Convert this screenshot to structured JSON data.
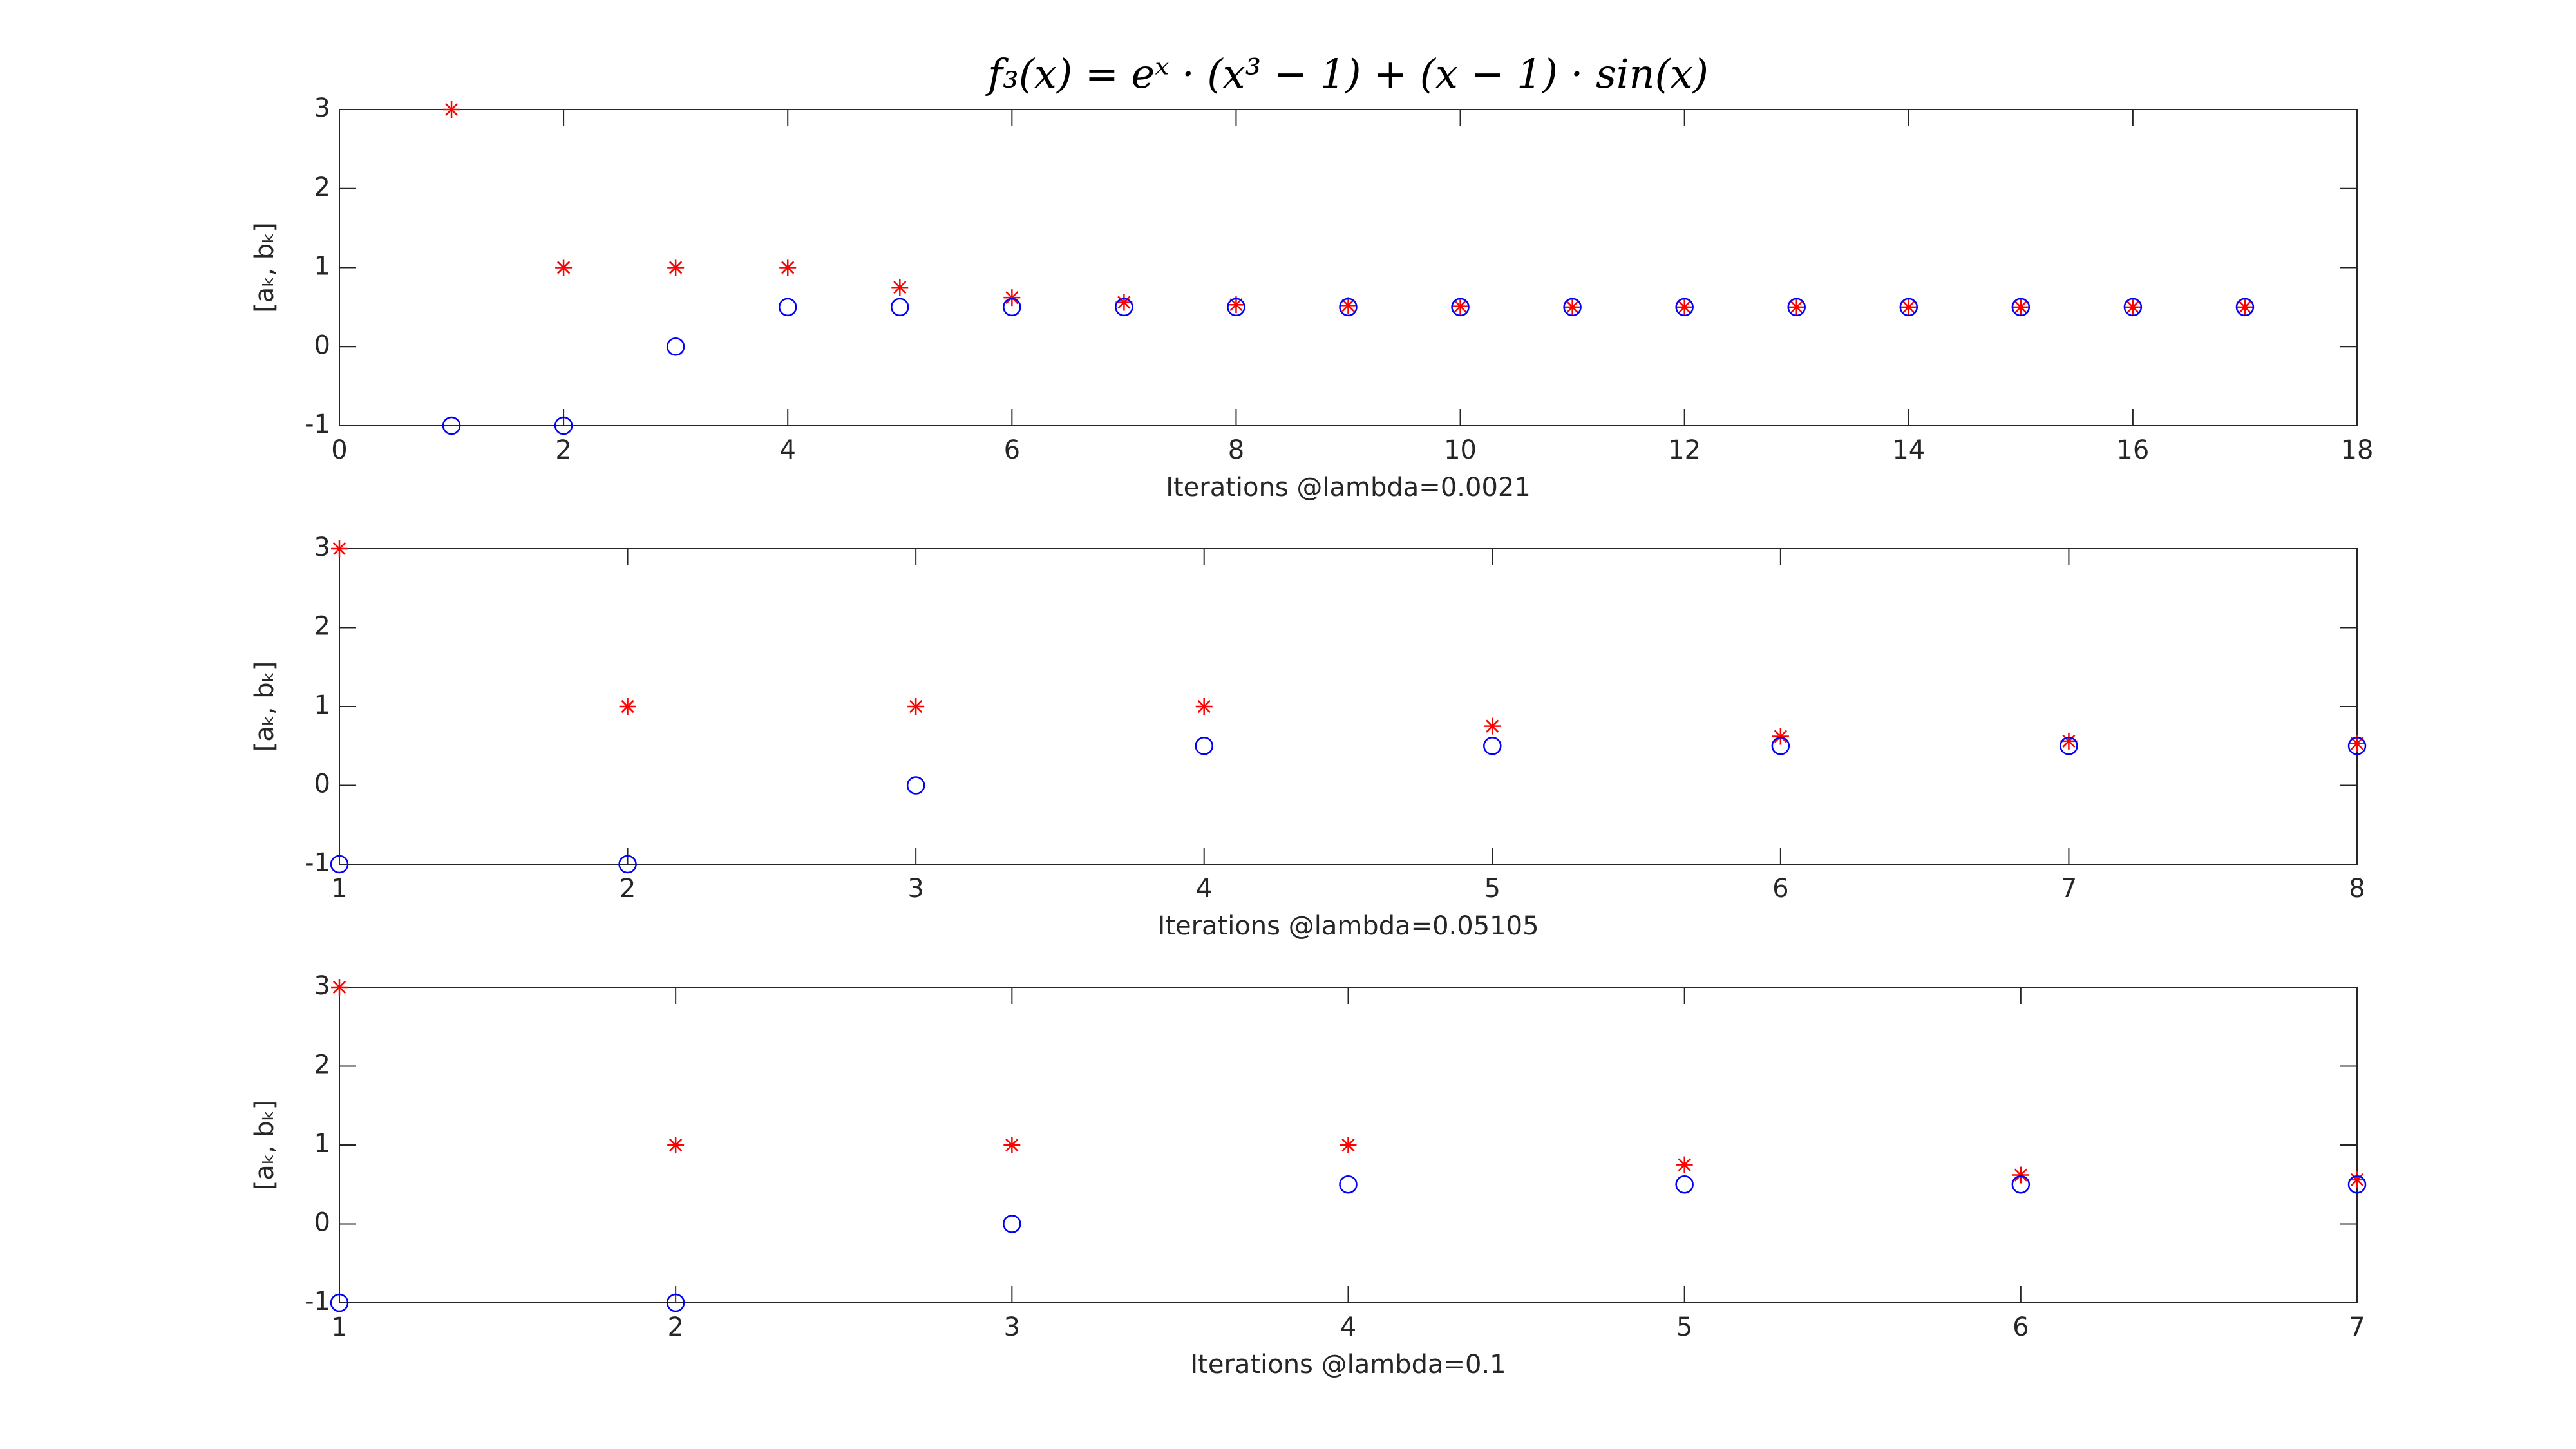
{
  "chart_data": [
    {
      "type": "scatter",
      "title": "f₃(x) = eˣ · (x³ − 1) + (x − 1) · sin(x)",
      "xlabel": "Iterations @lambda=0.0021",
      "ylabel": "[aₖ, bₖ]",
      "x": [
        1,
        2,
        3,
        4,
        5,
        6,
        7,
        8,
        9,
        10,
        11,
        12,
        13,
        14,
        15,
        16,
        17
      ],
      "series": [
        {
          "color": "#ff0000",
          "marker": "asterisk",
          "values": [
            3,
            1,
            1,
            1,
            0.75,
            0.62,
            0.56,
            0.53,
            0.52,
            0.51,
            0.5,
            0.5,
            0.5,
            0.5,
            0.5,
            0.5,
            0.5
          ]
        },
        {
          "color": "#0000ff",
          "marker": "circle",
          "values": [
            -1,
            -1,
            0,
            0.5,
            0.5,
            0.5,
            0.5,
            0.5,
            0.5,
            0.5,
            0.5,
            0.5,
            0.5,
            0.5,
            0.5,
            0.5,
            0.5
          ]
        }
      ],
      "xlim": [
        0,
        18
      ],
      "xticks": [
        0,
        2,
        4,
        6,
        8,
        10,
        12,
        14,
        16,
        18
      ],
      "ylim": [
        -1,
        3
      ],
      "yticks": [
        -1,
        0,
        1,
        2,
        3
      ]
    },
    {
      "type": "scatter",
      "xlabel": "Iterations @lambda=0.05105",
      "ylabel": "[aₖ, bₖ]",
      "x": [
        1,
        2,
        3,
        4,
        5,
        6,
        7,
        8
      ],
      "series": [
        {
          "color": "#ff0000",
          "marker": "asterisk",
          "values": [
            3,
            1,
            1,
            1,
            0.75,
            0.62,
            0.56,
            0.53
          ]
        },
        {
          "color": "#0000ff",
          "marker": "circle",
          "values": [
            -1,
            -1,
            0,
            0.5,
            0.5,
            0.5,
            0.5,
            0.5
          ]
        }
      ],
      "xlim": [
        1,
        8
      ],
      "xticks": [
        1,
        2,
        3,
        4,
        5,
        6,
        7,
        8
      ],
      "ylim": [
        -1,
        3
      ],
      "yticks": [
        -1,
        0,
        1,
        2,
        3
      ]
    },
    {
      "type": "scatter",
      "xlabel": "Iterations @lambda=0.1",
      "ylabel": "[aₖ, bₖ]",
      "x": [
        1,
        2,
        3,
        4,
        5,
        6,
        7
      ],
      "series": [
        {
          "color": "#ff0000",
          "marker": "asterisk",
          "values": [
            3,
            1,
            1,
            1,
            0.75,
            0.62,
            0.56
          ]
        },
        {
          "color": "#0000ff",
          "marker": "circle",
          "values": [
            -1,
            -1,
            0,
            0.5,
            0.5,
            0.5,
            0.5
          ]
        }
      ],
      "xlim": [
        1,
        7
      ],
      "xticks": [
        1,
        2,
        3,
        4,
        5,
        6,
        7
      ],
      "ylim": [
        -1,
        3
      ],
      "yticks": [
        -1,
        0,
        1,
        2,
        3
      ]
    }
  ]
}
